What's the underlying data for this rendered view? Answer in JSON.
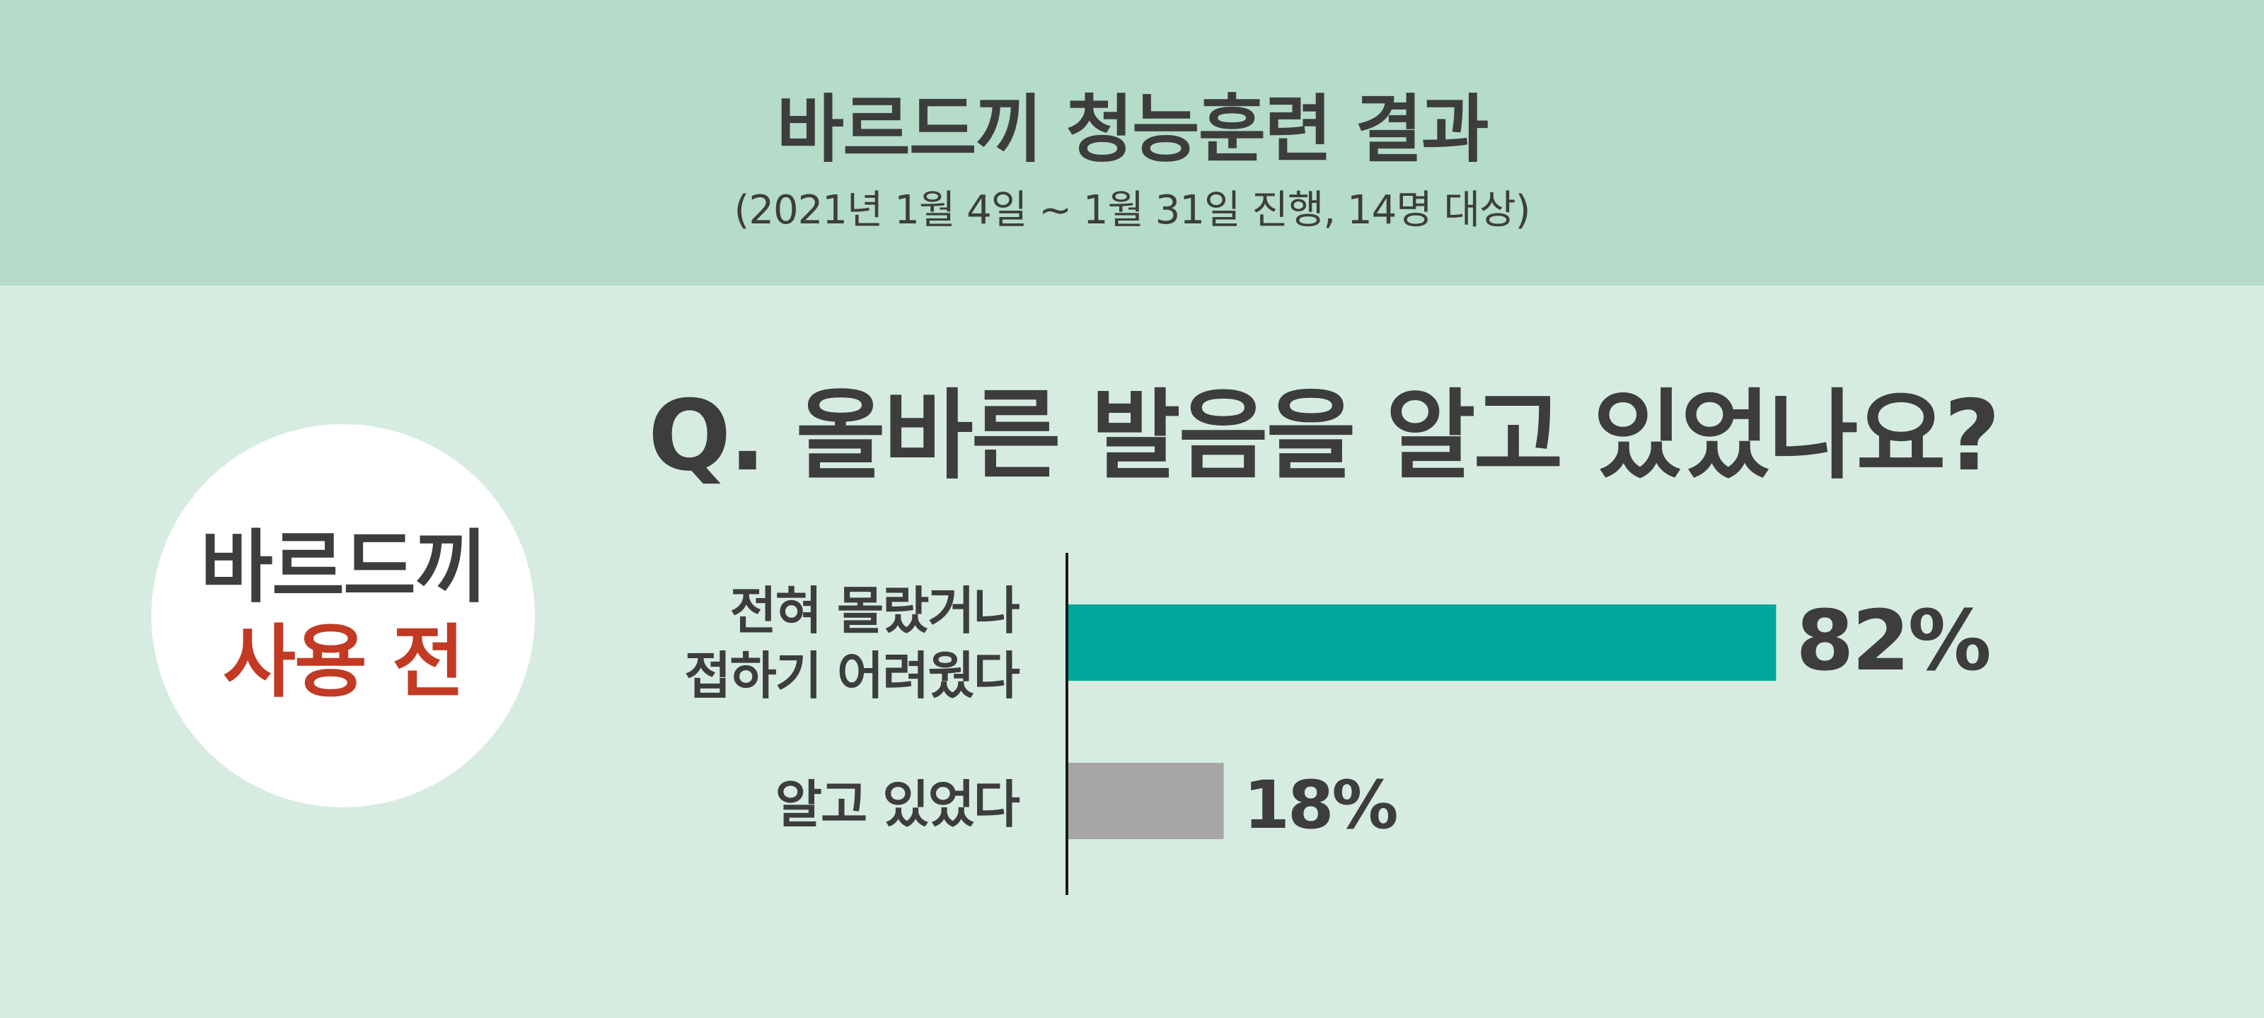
{
  "header": {
    "title": "바르드끼 청능훈련 결과",
    "subtitle": "(2021년 1월 4일 ~ 1월 31일 진행, 14명 대상)"
  },
  "badge": {
    "line1": "바르드끼",
    "line2": "사용 전"
  },
  "colors": {
    "header_bg": "#b4dcc8",
    "page_bg": "#d6ece1",
    "accent_red": "#c23a24",
    "bar_primary": "#00a79d",
    "bar_secondary": "#a6a6a6",
    "text": "#3d3d3d"
  },
  "chart_data": {
    "type": "bar",
    "orientation": "horizontal",
    "title": "Q. 올바른 발음을 알고 있었나요?",
    "xlabel": "",
    "ylabel": "",
    "xlim": [
      0,
      100
    ],
    "unit": "%",
    "categories": [
      "전혀 몰랐거나\n접하기 어려웠다",
      "알고 있었다"
    ],
    "values": [
      82,
      18
    ],
    "value_labels": [
      "82%",
      "18%"
    ],
    "bar_colors": [
      "#00a79d",
      "#a6a6a6"
    ]
  }
}
